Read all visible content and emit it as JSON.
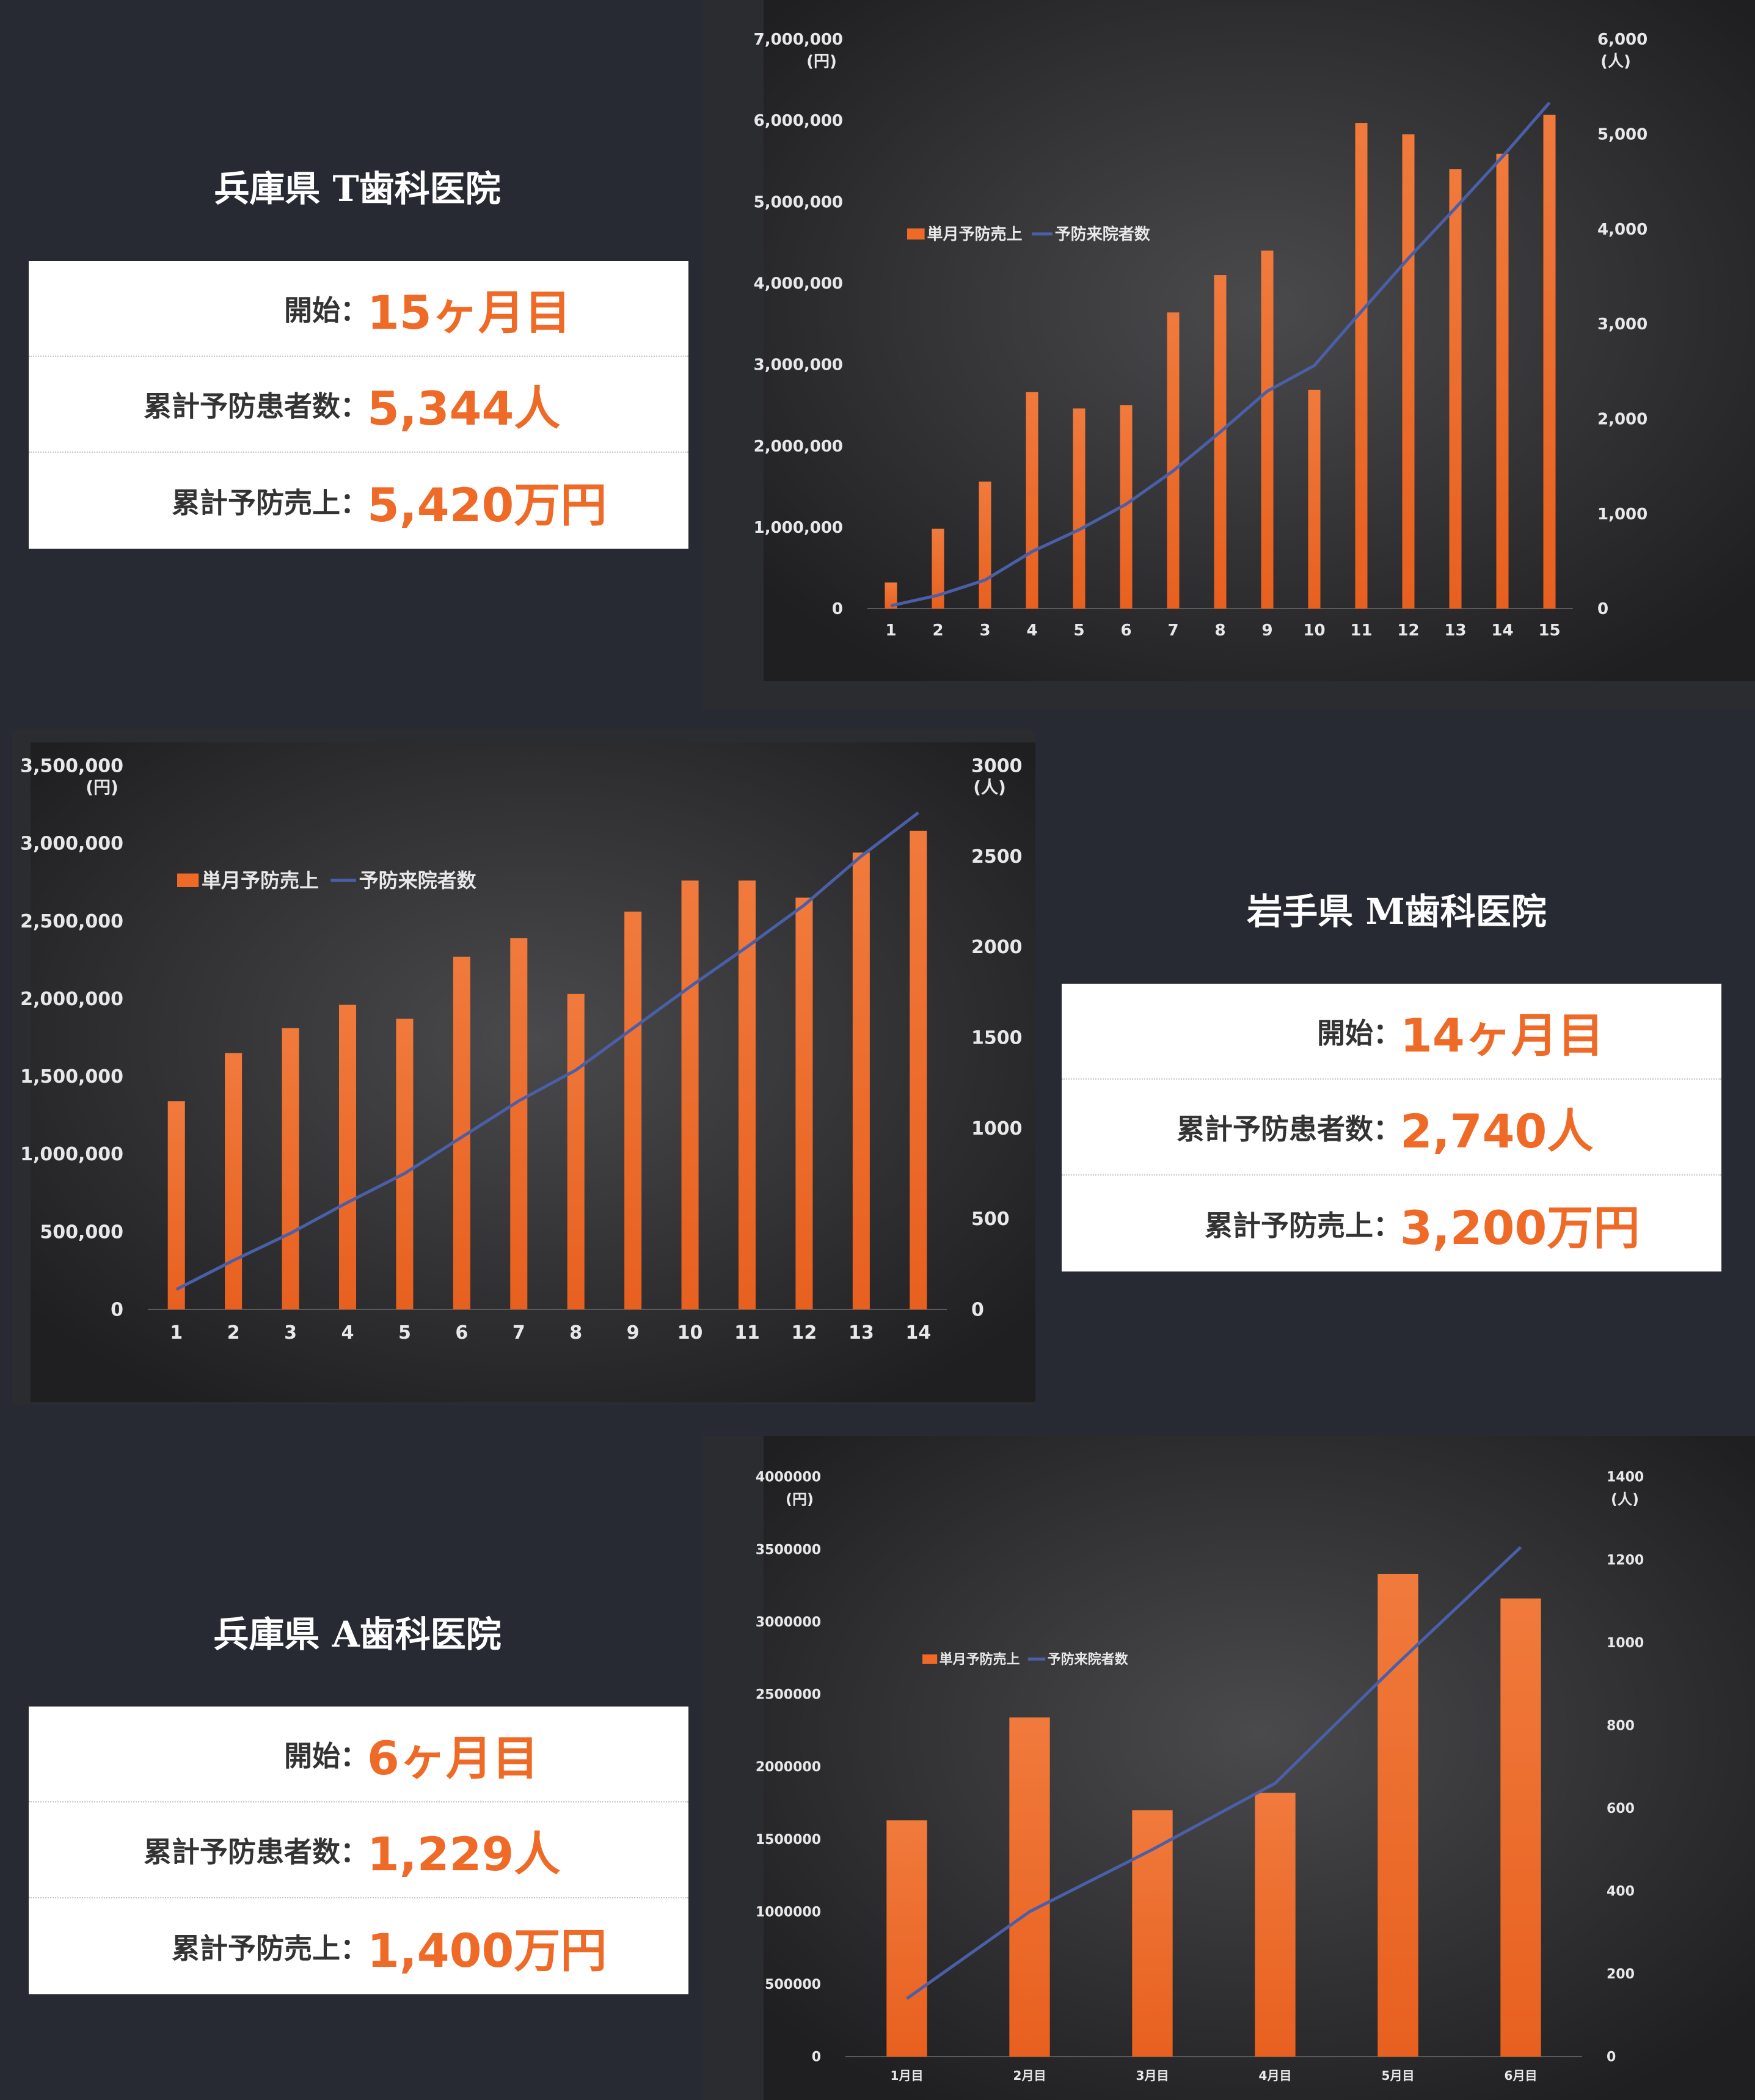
{
  "clinics": [
    {
      "name": "兵庫県 T歯科医院",
      "stats": [
        {
          "label": "開始",
          "value": "15ヶ月目"
        },
        {
          "label": "累計予防患者数",
          "value": "5,344人"
        },
        {
          "label": "累計予防売上",
          "value": "5,420万円"
        }
      ]
    },
    {
      "name": "岩手県 M歯科医院",
      "stats": [
        {
          "label": "開始",
          "value": "14ヶ月目"
        },
        {
          "label": "累計予防患者数",
          "value": "2,740人"
        },
        {
          "label": "累計予防売上",
          "value": "3,200万円"
        }
      ]
    },
    {
      "name": "兵庫県 A歯科医院",
      "stats": [
        {
          "label": "開始",
          "value": "6ヶ月目"
        },
        {
          "label": "累計予防患者数",
          "value": "1,229人"
        },
        {
          "label": "累計予防売上",
          "value": "1,400万円"
        }
      ]
    }
  ],
  "colon": "：",
  "colors": {
    "bar": "#ee6a26",
    "line": "#4a5fa8",
    "axis_text": "#e8e8e8",
    "panel_bg": "#2b2c30",
    "page_bg": "#272a33"
  },
  "chart_data": [
    {
      "type": "bar",
      "categories": [
        "1",
        "2",
        "3",
        "4",
        "5",
        "6",
        "7",
        "8",
        "9",
        "10",
        "11",
        "12",
        "13",
        "14",
        "15"
      ],
      "series": [
        {
          "name": "単月予防売上",
          "type": "bar",
          "axis": "left",
          "values": [
            320000,
            980000,
            1560000,
            2660000,
            2460000,
            2500000,
            3640000,
            4100000,
            4400000,
            2690000,
            5970000,
            5830000,
            5400000,
            5590000,
            6070000
          ]
        },
        {
          "name": "予防来院者数",
          "type": "line",
          "axis": "right",
          "values": [
            30,
            140,
            300,
            600,
            830,
            1100,
            1450,
            1860,
            2290,
            2560,
            3130,
            3690,
            4220,
            4760,
            5330
          ]
        }
      ],
      "left_axis": {
        "ylim": [
          0,
          7000000
        ],
        "ticks": [
          "0",
          "1,000,000",
          "2,000,000",
          "3,000,000",
          "4,000,000",
          "5,000,000",
          "6,000,000",
          "7,000,000"
        ],
        "unit": "(円)"
      },
      "right_axis": {
        "ylim": [
          0,
          6000
        ],
        "ticks": [
          "0",
          "1,000",
          "2,000",
          "3,000",
          "4,000",
          "5,000",
          "6,000"
        ],
        "unit": "(人)"
      },
      "legend": "top-left",
      "grid": false
    },
    {
      "type": "bar",
      "categories": [
        "1",
        "2",
        "3",
        "4",
        "5",
        "6",
        "7",
        "8",
        "9",
        "10",
        "11",
        "12",
        "13",
        "14"
      ],
      "series": [
        {
          "name": "単月予防売上",
          "type": "bar",
          "axis": "left",
          "values": [
            1340000,
            1650000,
            1810000,
            1960000,
            1870000,
            2270000,
            2390000,
            2030000,
            2560000,
            2760000,
            2760000,
            2650000,
            2940000,
            3080000
          ]
        },
        {
          "name": "予防来院者数",
          "type": "line",
          "axis": "right",
          "values": [
            110,
            270,
            420,
            590,
            750,
            950,
            1150,
            1320,
            1550,
            1780,
            2000,
            2230,
            2500,
            2740
          ]
        }
      ],
      "left_axis": {
        "ylim": [
          0,
          3500000
        ],
        "ticks": [
          "0",
          "500,000",
          "1,000,000",
          "1,500,000",
          "2,000,000",
          "2,500,000",
          "3,000,000",
          "3,500,000"
        ],
        "unit": "(円)"
      },
      "right_axis": {
        "ylim": [
          0,
          3000
        ],
        "ticks": [
          "0",
          "500",
          "1000",
          "1500",
          "2000",
          "2500",
          "3000"
        ],
        "unit": "(人)"
      },
      "legend": "top-left",
      "grid": false
    },
    {
      "type": "bar",
      "categories": [
        "1月目",
        "2月目",
        "3月目",
        "4月目",
        "5月目",
        "6月目"
      ],
      "series": [
        {
          "name": "単月予防売上",
          "type": "bar",
          "axis": "left",
          "values": [
            1630000,
            2340000,
            1700000,
            1820000,
            3330000,
            3160000
          ]
        },
        {
          "name": "予防来院者数",
          "type": "line",
          "axis": "right",
          "values": [
            140,
            350,
            500,
            660,
            950,
            1230
          ]
        }
      ],
      "left_axis": {
        "ylim": [
          0,
          4000000
        ],
        "ticks": [
          "0",
          "500000",
          "1000000",
          "1500000",
          "2000000",
          "2500000",
          "3000000",
          "3500000",
          "4000000"
        ],
        "unit": "(円)"
      },
      "right_axis": {
        "ylim": [
          0,
          1400
        ],
        "ticks": [
          "0",
          "200",
          "400",
          "600",
          "800",
          "1000",
          "1200",
          "1400"
        ],
        "unit": "(人)"
      },
      "legend": "top-left",
      "grid": false
    }
  ]
}
